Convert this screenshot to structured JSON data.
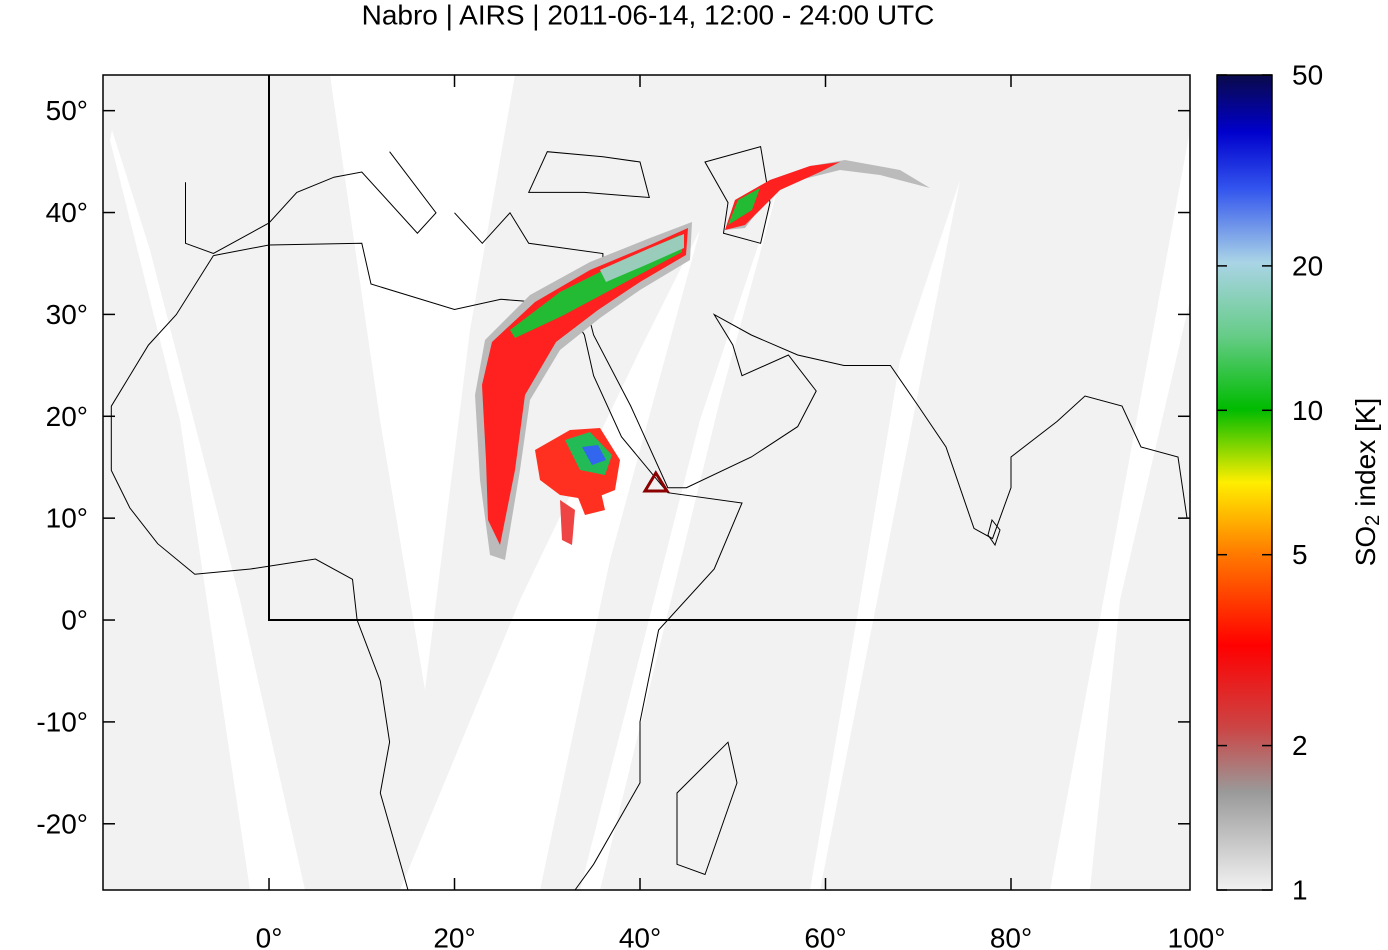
{
  "chart_data": {
    "type": "map",
    "title": "Nabro | AIRS | 2011-06-14, 12:00 - 24:00 UTC",
    "xlim": [
      -17.9,
      99.3
    ],
    "ylim": [
      -26.5,
      53.5
    ],
    "xticks": [
      {
        "value": 0,
        "label": "0°"
      },
      {
        "value": 20,
        "label": "20°"
      },
      {
        "value": 40,
        "label": "40°"
      },
      {
        "value": 60,
        "label": "60°"
      },
      {
        "value": 80,
        "label": "80°"
      },
      {
        "value": 100,
        "label": "100°"
      }
    ],
    "yticks": [
      {
        "value": 50,
        "label": "50°"
      },
      {
        "value": 40,
        "label": "40°"
      },
      {
        "value": 30,
        "label": "30°"
      },
      {
        "value": 20,
        "label": "20°"
      },
      {
        "value": 10,
        "label": "10°"
      },
      {
        "value": 0,
        "label": "0°"
      },
      {
        "value": -10,
        "label": "-10°"
      },
      {
        "value": -20,
        "label": "-20°"
      }
    ],
    "colorbar": {
      "label_main": "SO",
      "label_sub": "2",
      "label_rest": "index [K]",
      "lim": [
        1,
        50
      ],
      "ticks": [
        1,
        2,
        5,
        10,
        20,
        50
      ],
      "log": true
    }
  }
}
